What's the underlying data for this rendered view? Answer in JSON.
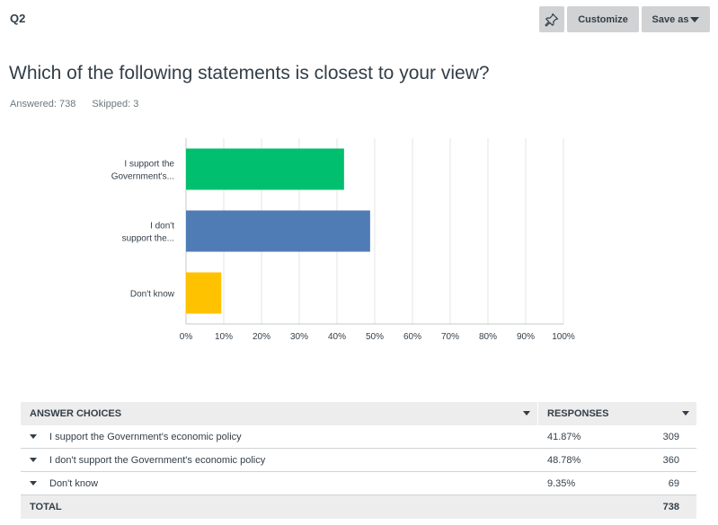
{
  "header": {
    "question_number": "Q2",
    "pin_icon": "pin-icon",
    "customize_label": "Customize",
    "save_as_label": "Save as"
  },
  "question": {
    "title": "Which of the following statements is closest to your view?",
    "answered": "Answered: 738",
    "skipped": "Skipped: 3"
  },
  "chart_data": {
    "type": "bar",
    "orientation": "horizontal",
    "categories": [
      "I support the Government's...",
      "I don't support the...",
      "Don't know"
    ],
    "category_lines": [
      [
        "I support the",
        "Government's..."
      ],
      [
        "I don't",
        "support the..."
      ],
      [
        "Don't know"
      ]
    ],
    "values": [
      41.87,
      48.78,
      9.35
    ],
    "colors": [
      "#00bf6f",
      "#507cb6",
      "#ffc200"
    ],
    "xlim": [
      0,
      100
    ],
    "xticks": [
      "0%",
      "10%",
      "20%",
      "30%",
      "40%",
      "50%",
      "60%",
      "70%",
      "80%",
      "90%",
      "100%"
    ],
    "grid": true,
    "title": "",
    "xlabel": "",
    "ylabel": ""
  },
  "table": {
    "header_choices": "ANSWER CHOICES",
    "header_responses": "RESPONSES",
    "rows": [
      {
        "choice": "I support the Government's economic policy",
        "percent": "41.87%",
        "count": "309"
      },
      {
        "choice": "I don't support the Government's economic policy",
        "percent": "48.78%",
        "count": "360"
      },
      {
        "choice": "Don't know",
        "percent": "9.35%",
        "count": "69"
      }
    ],
    "total_label": "TOTAL",
    "total_value": "738"
  }
}
